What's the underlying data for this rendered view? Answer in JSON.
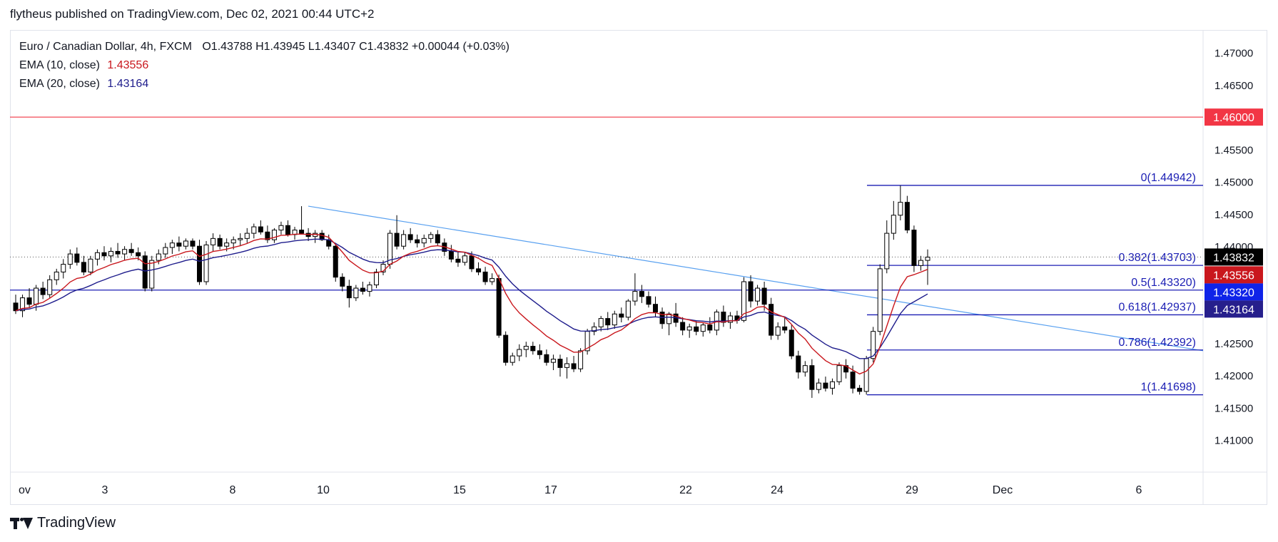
{
  "header": {
    "published": "flytheus published on TradingView.com, Dec 02, 2021 00:44 UTC+2"
  },
  "legend": {
    "symbol": "Euro / Canadian Dollar, 4h, FXCM",
    "ohlc": "O1.43788  H1.43945  L1.43407  C1.43832  +0.00044 (+0.03%)",
    "ema10_label": "EMA (10, close)",
    "ema10_value": "1.43556",
    "ema20_label": "EMA (20, close)",
    "ema20_value": "1.43164"
  },
  "footer": {
    "brand": "TradingView"
  },
  "colors": {
    "up": "#ffffff",
    "down": "#000000",
    "ema10": "#c9171d",
    "ema20": "#1e1c8c",
    "fib": "#1b1eb4",
    "trend": "#58a0f0",
    "resistance": "#f23645",
    "grid": "#e0e3eb",
    "price_tag": "#000000",
    "ema10_tag": "#c9171d",
    "fib_tag": "#0f23e8",
    "ema20_tag": "#261f8c"
  },
  "chart_data": {
    "type": "candlestick",
    "instrument": "EURCAD",
    "timeframe": "4h",
    "ylim": [
      1.405,
      1.4735
    ],
    "y_ticks": [
      "1.47000",
      "1.46500",
      "1.45500",
      "1.45000",
      "1.44500",
      "1.44000",
      "1.42500",
      "1.42000",
      "1.41500",
      "1.41000"
    ],
    "x_ticks": [
      "ov",
      "3",
      "8",
      "10",
      "15",
      "17",
      "22",
      "24",
      "29",
      "Dec",
      "6"
    ],
    "resistance": {
      "value": 1.46,
      "label": "1.46000"
    },
    "price_tags": [
      {
        "label": "1.43832",
        "value": 1.43832,
        "kind": "price"
      },
      {
        "label": "1.43556",
        "value": 1.43556,
        "kind": "ema10"
      },
      {
        "label": "1.43320",
        "value": 1.4332,
        "kind": "fib"
      },
      {
        "label": "1.43164",
        "value": 1.43164,
        "kind": "ema20"
      }
    ],
    "fib_levels": [
      {
        "label": "0(1.44942)",
        "value": 1.44942
      },
      {
        "label": "0.382(1.43703)",
        "value": 1.43703
      },
      {
        "label": "0.5(1.43320)",
        "value": 1.4332
      },
      {
        "label": "0.618(1.42937)",
        "value": 1.42937
      },
      {
        "label": "0.786(1.42392)",
        "value": 1.42392
      },
      {
        "label": "1(1.41698)",
        "value": 1.41698
      }
    ],
    "trendline": {
      "from": {
        "date": "Nov 9",
        "value": 1.4462
      },
      "to": {
        "date": "Dec 6",
        "value": 1.4238
      }
    },
    "last_close": 1.43832,
    "ohlc": [
      [
        1.4312,
        1.4325,
        1.4295,
        1.43
      ],
      [
        1.43,
        1.4325,
        1.429,
        1.432
      ],
      [
        1.432,
        1.4335,
        1.4305,
        1.431
      ],
      [
        1.431,
        1.434,
        1.43,
        1.4335
      ],
      [
        1.4335,
        1.4345,
        1.4318,
        1.4325
      ],
      [
        1.4325,
        1.4355,
        1.432,
        1.4348
      ],
      [
        1.4348,
        1.4365,
        1.434,
        1.436
      ],
      [
        1.436,
        1.438,
        1.435,
        1.4372
      ],
      [
        1.4372,
        1.4395,
        1.4365,
        1.4388
      ],
      [
        1.4388,
        1.4398,
        1.437,
        1.4375
      ],
      [
        1.4375,
        1.4385,
        1.4355,
        1.436
      ],
      [
        1.436,
        1.4385,
        1.4355,
        1.438
      ],
      [
        1.438,
        1.4395,
        1.437,
        1.439
      ],
      [
        1.439,
        1.44,
        1.4378,
        1.4385
      ],
      [
        1.4385,
        1.4398,
        1.4375,
        1.4392
      ],
      [
        1.4392,
        1.4405,
        1.4382,
        1.4388
      ],
      [
        1.4388,
        1.44,
        1.4378,
        1.4395
      ],
      [
        1.4395,
        1.4405,
        1.4385,
        1.439
      ],
      [
        1.439,
        1.4398,
        1.4378,
        1.4385
      ],
      [
        1.4385,
        1.4392,
        1.433,
        1.4335
      ],
      [
        1.4335,
        1.4385,
        1.433,
        1.4378
      ],
      [
        1.4378,
        1.4395,
        1.4372,
        1.4388
      ],
      [
        1.4388,
        1.4405,
        1.4382,
        1.4398
      ],
      [
        1.4398,
        1.441,
        1.4388,
        1.4405
      ],
      [
        1.4405,
        1.4415,
        1.4392,
        1.44
      ],
      [
        1.44,
        1.4412,
        1.4395,
        1.4408
      ],
      [
        1.4408,
        1.4412,
        1.4395,
        1.44
      ],
      [
        1.44,
        1.441,
        1.434,
        1.4345
      ],
      [
        1.4345,
        1.4408,
        1.434,
        1.4402
      ],
      [
        1.4402,
        1.442,
        1.4392,
        1.4412
      ],
      [
        1.4412,
        1.4418,
        1.4395,
        1.44
      ],
      [
        1.44,
        1.4412,
        1.4392,
        1.4405
      ],
      [
        1.4405,
        1.4415,
        1.4395,
        1.441
      ],
      [
        1.441,
        1.442,
        1.44,
        1.4412
      ],
      [
        1.4412,
        1.4428,
        1.4405,
        1.442
      ],
      [
        1.442,
        1.4435,
        1.4412,
        1.443
      ],
      [
        1.443,
        1.444,
        1.4418,
        1.4422
      ],
      [
        1.4422,
        1.4432,
        1.4405,
        1.441
      ],
      [
        1.441,
        1.4428,
        1.4405,
        1.4425
      ],
      [
        1.4425,
        1.4438,
        1.4418,
        1.4432
      ],
      [
        1.4432,
        1.444,
        1.4415,
        1.4418
      ],
      [
        1.4418,
        1.443,
        1.441,
        1.4425
      ],
      [
        1.4425,
        1.4462,
        1.4418,
        1.442
      ],
      [
        1.442,
        1.4428,
        1.4408,
        1.4415
      ],
      [
        1.4415,
        1.4425,
        1.4405,
        1.442
      ],
      [
        1.442,
        1.4425,
        1.4408,
        1.441
      ],
      [
        1.441,
        1.4418,
        1.4395,
        1.44
      ],
      [
        1.44,
        1.4405,
        1.4345,
        1.4352
      ],
      [
        1.4352,
        1.4358,
        1.433,
        1.4338
      ],
      [
        1.4338,
        1.4348,
        1.4305,
        1.432
      ],
      [
        1.432,
        1.434,
        1.4315,
        1.4335
      ],
      [
        1.4335,
        1.4345,
        1.4325,
        1.433
      ],
      [
        1.433,
        1.4345,
        1.4322,
        1.434
      ],
      [
        1.434,
        1.4365,
        1.4335,
        1.436
      ],
      [
        1.436,
        1.4378,
        1.4355,
        1.4372
      ],
      [
        1.4372,
        1.4425,
        1.4365,
        1.442
      ],
      [
        1.442,
        1.4448,
        1.4395,
        1.44
      ],
      [
        1.44,
        1.4425,
        1.4395,
        1.4418
      ],
      [
        1.4418,
        1.4428,
        1.4405,
        1.441
      ],
      [
        1.441,
        1.4418,
        1.4398,
        1.4405
      ],
      [
        1.4405,
        1.4418,
        1.4398,
        1.4412
      ],
      [
        1.4412,
        1.4422,
        1.4405,
        1.4418
      ],
      [
        1.4418,
        1.4425,
        1.44,
        1.4405
      ],
      [
        1.4405,
        1.4412,
        1.4385,
        1.4392
      ],
      [
        1.4392,
        1.4402,
        1.4375,
        1.438
      ],
      [
        1.438,
        1.4392,
        1.4368,
        1.4375
      ],
      [
        1.4375,
        1.439,
        1.437,
        1.4385
      ],
      [
        1.4385,
        1.4392,
        1.436,
        1.4365
      ],
      [
        1.4365,
        1.4375,
        1.4355,
        1.436
      ],
      [
        1.436,
        1.4368,
        1.434,
        1.4345
      ],
      [
        1.4345,
        1.4358,
        1.434,
        1.435
      ],
      [
        1.435,
        1.4356,
        1.4258,
        1.4262
      ],
      [
        1.4262,
        1.4268,
        1.4215,
        1.422
      ],
      [
        1.422,
        1.4235,
        1.4215,
        1.423
      ],
      [
        1.423,
        1.4248,
        1.4222,
        1.424
      ],
      [
        1.424,
        1.4252,
        1.4228,
        1.4245
      ],
      [
        1.4245,
        1.4252,
        1.4232,
        1.4238
      ],
      [
        1.4238,
        1.4248,
        1.4225,
        1.4232
      ],
      [
        1.4232,
        1.424,
        1.4215,
        1.422
      ],
      [
        1.422,
        1.4232,
        1.4208,
        1.4225
      ],
      [
        1.4225,
        1.4232,
        1.4198,
        1.4212
      ],
      [
        1.4212,
        1.4228,
        1.4195,
        1.4218
      ],
      [
        1.4218,
        1.423,
        1.4205,
        1.421
      ],
      [
        1.421,
        1.4242,
        1.4205,
        1.4238
      ],
      [
        1.4238,
        1.4272,
        1.4232,
        1.4268
      ],
      [
        1.4268,
        1.4282,
        1.4262,
        1.4275
      ],
      [
        1.4275,
        1.4292,
        1.4268,
        1.4288
      ],
      [
        1.4288,
        1.4298,
        1.427,
        1.4278
      ],
      [
        1.4278,
        1.43,
        1.4272,
        1.4295
      ],
      [
        1.4295,
        1.4305,
        1.4282,
        1.429
      ],
      [
        1.429,
        1.4318,
        1.4285,
        1.4315
      ],
      [
        1.4315,
        1.4358,
        1.4308,
        1.433
      ],
      [
        1.433,
        1.434,
        1.4312,
        1.4322
      ],
      [
        1.4322,
        1.433,
        1.4305,
        1.431
      ],
      [
        1.431,
        1.4322,
        1.429,
        1.4298
      ],
      [
        1.4298,
        1.4305,
        1.4272,
        1.428
      ],
      [
        1.428,
        1.4298,
        1.4262,
        1.4295
      ],
      [
        1.4295,
        1.4312,
        1.4275,
        1.4282
      ],
      [
        1.4282,
        1.429,
        1.4262,
        1.427
      ],
      [
        1.427,
        1.428,
        1.4258,
        1.4275
      ],
      [
        1.4275,
        1.4285,
        1.4262,
        1.4268
      ],
      [
        1.4268,
        1.4282,
        1.426,
        1.4278
      ],
      [
        1.4278,
        1.429,
        1.4265,
        1.427
      ],
      [
        1.427,
        1.4302,
        1.4262,
        1.4298
      ],
      [
        1.4298,
        1.4308,
        1.4275,
        1.4282
      ],
      [
        1.4282,
        1.4298,
        1.4272,
        1.4292
      ],
      [
        1.4292,
        1.43,
        1.428,
        1.4285
      ],
      [
        1.4285,
        1.4352,
        1.4282,
        1.4345
      ],
      [
        1.4345,
        1.4355,
        1.4305,
        1.4315
      ],
      [
        1.4315,
        1.434,
        1.4308,
        1.4335
      ],
      [
        1.4335,
        1.4345,
        1.43,
        1.431
      ],
      [
        1.431,
        1.432,
        1.4255,
        1.4262
      ],
      [
        1.4262,
        1.4282,
        1.4255,
        1.4275
      ],
      [
        1.4275,
        1.429,
        1.4265,
        1.427
      ],
      [
        1.427,
        1.4278,
        1.4225,
        1.423
      ],
      [
        1.423,
        1.4238,
        1.4195,
        1.4205
      ],
      [
        1.4205,
        1.4222,
        1.4198,
        1.4215
      ],
      [
        1.4215,
        1.4225,
        1.4165,
        1.4178
      ],
      [
        1.4178,
        1.4195,
        1.4172,
        1.4188
      ],
      [
        1.4188,
        1.4198,
        1.4175,
        1.418
      ],
      [
        1.418,
        1.4195,
        1.417,
        1.419
      ],
      [
        1.419,
        1.422,
        1.4185,
        1.4215
      ],
      [
        1.4215,
        1.4225,
        1.4195,
        1.4205
      ],
      [
        1.4205,
        1.4215,
        1.4172,
        1.418
      ],
      [
        1.418,
        1.4185,
        1.417,
        1.4175
      ],
      [
        1.4175,
        1.423,
        1.417,
        1.4226
      ],
      [
        1.4226,
        1.4275,
        1.422,
        1.4268
      ],
      [
        1.4268,
        1.4372,
        1.4262,
        1.4365
      ],
      [
        1.4365,
        1.444,
        1.4358,
        1.442
      ],
      [
        1.442,
        1.447,
        1.441,
        1.4448
      ],
      [
        1.4448,
        1.4494,
        1.444,
        1.4468
      ],
      [
        1.4468,
        1.4478,
        1.442,
        1.4425
      ],
      [
        1.4425,
        1.4432,
        1.436,
        1.437
      ],
      [
        1.437,
        1.4385,
        1.4362,
        1.4378
      ],
      [
        1.4378,
        1.4395,
        1.434,
        1.4383
      ]
    ],
    "ema10_label": "EMA (10, close)",
    "ema20_label": "EMA (20, close)"
  }
}
